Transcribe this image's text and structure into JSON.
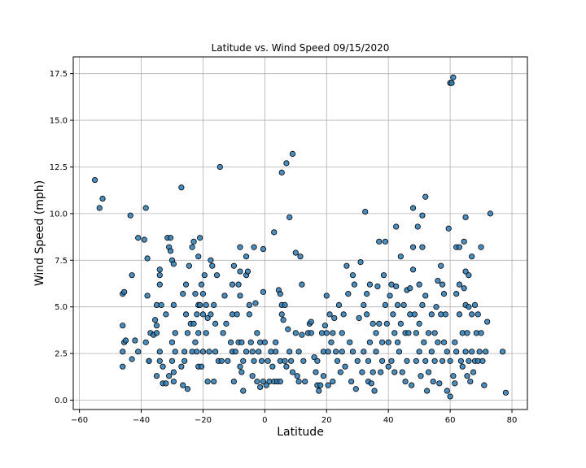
{
  "chart_data": {
    "type": "scatter",
    "title": "Latitude vs. Wind Speed 09/15/2020",
    "xlabel": "Latitude",
    "ylabel": "Wind Speed (mph)",
    "xlim": [
      -62,
      85
    ],
    "ylim": [
      -0.5,
      18.4
    ],
    "xticks": [
      -60,
      -40,
      -20,
      0,
      20,
      40,
      60,
      80
    ],
    "yticks": [
      0.0,
      2.5,
      5.0,
      7.5,
      10.0,
      12.5,
      15.0,
      17.5
    ],
    "xtick_labels": [
      "−60",
      "−40",
      "−20",
      "0",
      "20",
      "40",
      "60",
      "80"
    ],
    "ytick_labels": [
      "0.0",
      "2.5",
      "5.0",
      "7.5",
      "10.0",
      "12.5",
      "15.0",
      "17.5"
    ],
    "grid": true,
    "marker_color": "#2a7ab5",
    "marker_edge_color": "#000000",
    "points": [
      [
        -55,
        11.8
      ],
      [
        -53.5,
        10.3
      ],
      [
        -52.5,
        10.8
      ],
      [
        -46,
        4.0
      ],
      [
        -46,
        5.7
      ],
      [
        -45.5,
        5.8
      ],
      [
        -46,
        2.6
      ],
      [
        -45.5,
        3.1
      ],
      [
        -45,
        3.2
      ],
      [
        -46,
        1.8
      ],
      [
        -43.5,
        9.9
      ],
      [
        -43,
        6.7
      ],
      [
        -42,
        3.2
      ],
      [
        -43,
        2.2
      ],
      [
        -41,
        8.7
      ],
      [
        -41,
        2.6
      ],
      [
        -39,
        8.6
      ],
      [
        -38.5,
        10.3
      ],
      [
        -38,
        5.6
      ],
      [
        -38,
        7.6
      ],
      [
        -38.5,
        3.1
      ],
      [
        -37.5,
        2.1
      ],
      [
        -37,
        3.6
      ],
      [
        -37.5,
        2.1
      ],
      [
        -36,
        3.5
      ],
      [
        -35.5,
        4.3
      ],
      [
        -35,
        5.1
      ],
      [
        -35,
        4.0
      ],
      [
        -35,
        3.6
      ],
      [
        -34,
        6.7
      ],
      [
        -34,
        7.0
      ],
      [
        -34,
        6.2
      ],
      [
        -33.5,
        5.1
      ],
      [
        -34,
        2.6
      ],
      [
        -34,
        2.1
      ],
      [
        -35,
        1.3
      ],
      [
        -33,
        1.8
      ],
      [
        -32,
        4.6
      ],
      [
        -33,
        0.9
      ],
      [
        -32,
        0.9
      ],
      [
        -31.5,
        8.7
      ],
      [
        -31,
        8.2
      ],
      [
        -30.5,
        8.7
      ],
      [
        -30.5,
        8.0
      ],
      [
        -30,
        7.5
      ],
      [
        -29.5,
        7.3
      ],
      [
        -29.5,
        5.1
      ],
      [
        -30,
        3.1
      ],
      [
        -29,
        3.6
      ],
      [
        -29,
        2.6
      ],
      [
        -29.5,
        1.5
      ],
      [
        -29.5,
        1.0
      ],
      [
        -31,
        1.3
      ],
      [
        -30,
        2.1
      ],
      [
        -27,
        11.4
      ],
      [
        -26.5,
        5.7
      ],
      [
        -26,
        2.6
      ],
      [
        -26,
        2.1
      ],
      [
        -27,
        1.8
      ],
      [
        -26.5,
        0.8
      ],
      [
        -25.5,
        6.2
      ],
      [
        -25.5,
        4.6
      ],
      [
        -25,
        3.6
      ],
      [
        -25,
        0.6
      ],
      [
        -24.5,
        7.2
      ],
      [
        -24,
        4.1
      ],
      [
        -23.5,
        8.2
      ],
      [
        -23.5,
        2.6
      ],
      [
        -23,
        8.5
      ],
      [
        -23,
        4.1
      ],
      [
        -22.5,
        5.7
      ],
      [
        -22.5,
        3.1
      ],
      [
        -22,
        4.6
      ],
      [
        -22,
        2.6
      ],
      [
        -21.5,
        7.7
      ],
      [
        -21.5,
        5.1
      ],
      [
        -21.5,
        3.6
      ],
      [
        -21.5,
        1.8
      ],
      [
        -21,
        8.7
      ],
      [
        -21,
        5.1
      ],
      [
        -20.5,
        6.2
      ],
      [
        -20,
        4.6
      ],
      [
        -20,
        2.6
      ],
      [
        -20.5,
        1.8
      ],
      [
        -20,
        5.7
      ],
      [
        -19.5,
        6.7
      ],
      [
        -19,
        5.1
      ],
      [
        -19,
        3.6
      ],
      [
        -18.5,
        4.4
      ],
      [
        -18,
        2.6
      ],
      [
        -18.5,
        1.0
      ],
      [
        -17.5,
        7.5
      ],
      [
        -17.5,
        4.6
      ],
      [
        -17,
        7.2
      ],
      [
        -16.5,
        5.1
      ],
      [
        -16.5,
        1.0
      ],
      [
        -16,
        2.6
      ],
      [
        -16,
        4.1
      ],
      [
        -15.5,
        6.7
      ],
      [
        -15,
        2.1
      ],
      [
        -14.5,
        12.5
      ],
      [
        -14,
        2.1
      ],
      [
        -13,
        5.6
      ],
      [
        -13.5,
        3.6
      ],
      [
        -12.5,
        4.1
      ],
      [
        -12,
        2.1
      ],
      [
        -11,
        3.1
      ],
      [
        -10.5,
        6.2
      ],
      [
        -10,
        7.2
      ],
      [
        -10.5,
        4.6
      ],
      [
        -10.5,
        2.6
      ],
      [
        -10,
        1.0
      ],
      [
        -9.5,
        2.6
      ],
      [
        -9,
        4.6
      ],
      [
        -8.5,
        6.2
      ],
      [
        -8.5,
        3.1
      ],
      [
        -8,
        5.6
      ],
      [
        -8,
        8.2
      ],
      [
        -8,
        6.9
      ],
      [
        -8,
        1.8
      ],
      [
        -7.5,
        3.1
      ],
      [
        -7.5,
        1.5
      ],
      [
        -7,
        2.1
      ],
      [
        -7,
        0.5
      ],
      [
        -6,
        7.7
      ],
      [
        -6,
        6.7
      ],
      [
        -6,
        2.6
      ],
      [
        -5.5,
        6.9
      ],
      [
        -5,
        5.1
      ],
      [
        -5,
        4.6
      ],
      [
        -4.5,
        3.1
      ],
      [
        -4,
        2.6
      ],
      [
        -4,
        1.3
      ],
      [
        -3.5,
        8.2
      ],
      [
        -3.5,
        2.1
      ],
      [
        -3,
        5.2
      ],
      [
        -2.5,
        3.6
      ],
      [
        -2.5,
        1.0
      ],
      [
        -2,
        2.6
      ],
      [
        -1.5,
        3.1
      ],
      [
        -1.5,
        0.7
      ],
      [
        -1,
        2.1
      ],
      [
        -0.5,
        5.8
      ],
      [
        -0.5,
        1.0
      ],
      [
        -0.5,
        8.1
      ],
      [
        0,
        3.1
      ],
      [
        0.5,
        0.8
      ],
      [
        1,
        2.1
      ],
      [
        1.5,
        1.0
      ],
      [
        2,
        2.6
      ],
      [
        2.5,
        1.8
      ],
      [
        3,
        9.0
      ],
      [
        3,
        1.0
      ],
      [
        3.5,
        3.1
      ],
      [
        3.5,
        2.6
      ],
      [
        4,
        1.0
      ],
      [
        4.5,
        5.9
      ],
      [
        5,
        5.7
      ],
      [
        5,
        2.1
      ],
      [
        5,
        1.0
      ],
      [
        5.5,
        12.2
      ],
      [
        5.5,
        5.1
      ],
      [
        5.5,
        4.6
      ],
      [
        6,
        4.3
      ],
      [
        6.5,
        5.1
      ],
      [
        6.5,
        2.1
      ],
      [
        7,
        1.8
      ],
      [
        7,
        12.7
      ],
      [
        7.5,
        3.8
      ],
      [
        8,
        9.8
      ],
      [
        8,
        2.6
      ],
      [
        8.5,
        2.1
      ],
      [
        9,
        13.2
      ],
      [
        9,
        1.5
      ],
      [
        10,
        7.9
      ],
      [
        10,
        3.6
      ],
      [
        10.5,
        1.3
      ],
      [
        11,
        2.6
      ],
      [
        11,
        1.0
      ],
      [
        11.5,
        7.7
      ],
      [
        12,
        6.2
      ],
      [
        12,
        3.5
      ],
      [
        12.5,
        2.1
      ],
      [
        13,
        1.0
      ],
      [
        14,
        3.6
      ],
      [
        14.5,
        4.1
      ],
      [
        15,
        4.2
      ],
      [
        15,
        3.6
      ],
      [
        16,
        2.3
      ],
      [
        16.5,
        1.5
      ],
      [
        17,
        2.1
      ],
      [
        17,
        0.8
      ],
      [
        17.5,
        0.5
      ],
      [
        18,
        0.8
      ],
      [
        18.5,
        3.6
      ],
      [
        19,
        2.6
      ],
      [
        19,
        1.3
      ],
      [
        19.5,
        4.0
      ],
      [
        20,
        5.6
      ],
      [
        20,
        3.6
      ],
      [
        20.5,
        0.8
      ],
      [
        20.5,
        2.6
      ],
      [
        21,
        4.6
      ],
      [
        21.5,
        3.1
      ],
      [
        22,
        3.6
      ],
      [
        22,
        1.0
      ],
      [
        22.5,
        4.4
      ],
      [
        23,
        2.6
      ],
      [
        23.5,
        2.1
      ],
      [
        24,
        5.1
      ],
      [
        24.5,
        1.5
      ],
      [
        25,
        3.6
      ],
      [
        25,
        2.6
      ],
      [
        25.5,
        4.6
      ],
      [
        26,
        1.8
      ],
      [
        26.5,
        7.2
      ],
      [
        27,
        5.7
      ],
      [
        27.5,
        3.1
      ],
      [
        28,
        1.0
      ],
      [
        28.5,
        6.7
      ],
      [
        28.5,
        2.6
      ],
      [
        29,
        6.2
      ],
      [
        29.5,
        0.6
      ],
      [
        30,
        2.1
      ],
      [
        30.5,
        4.4
      ],
      [
        31,
        7.4
      ],
      [
        31.5,
        1.5
      ],
      [
        32,
        5.1
      ],
      [
        32,
        2.6
      ],
      [
        32.5,
        10.1
      ],
      [
        33,
        5.7
      ],
      [
        33,
        4.6
      ],
      [
        33.5,
        2.1
      ],
      [
        33.5,
        1.0
      ],
      [
        34,
        6.2
      ],
      [
        34,
        3.1
      ],
      [
        34.5,
        0.9
      ],
      [
        35,
        1.5
      ],
      [
        35,
        4.1
      ],
      [
        35.5,
        0.5
      ],
      [
        36,
        3.6
      ],
      [
        36,
        2.6
      ],
      [
        36.5,
        6.1
      ],
      [
        37,
        8.5
      ],
      [
        37,
        4.1
      ],
      [
        37.5,
        1.5
      ],
      [
        38,
        3.1
      ],
      [
        38,
        2.1
      ],
      [
        38.5,
        6.7
      ],
      [
        39,
        8.5
      ],
      [
        39,
        5.1
      ],
      [
        39.5,
        4.1
      ],
      [
        40,
        3.1
      ],
      [
        40,
        1.8
      ],
      [
        40.5,
        5.6
      ],
      [
        41,
        6.2
      ],
      [
        41,
        2.1
      ],
      [
        41.5,
        4.6
      ],
      [
        42,
        3.6
      ],
      [
        42,
        1.5
      ],
      [
        42.5,
        9.3
      ],
      [
        42.5,
        6.1
      ],
      [
        43,
        5.1
      ],
      [
        43,
        3.1
      ],
      [
        43.5,
        2.6
      ],
      [
        44,
        7.7
      ],
      [
        44,
        4.1
      ],
      [
        44.5,
        1.5
      ],
      [
        45,
        5.1
      ],
      [
        45.5,
        3.6
      ],
      [
        45.5,
        1.0
      ],
      [
        46,
        5.9
      ],
      [
        46,
        2.1
      ],
      [
        46.5,
        3.6
      ],
      [
        47,
        6.0
      ],
      [
        47,
        4.6
      ],
      [
        47.5,
        0.8
      ],
      [
        48,
        10.3
      ],
      [
        48,
        8.2
      ],
      [
        48,
        7.0
      ],
      [
        48.5,
        4.6
      ],
      [
        49,
        3.6
      ],
      [
        49,
        2.1
      ],
      [
        49.5,
        9.3
      ],
      [
        50,
        6.2
      ],
      [
        50,
        4.1
      ],
      [
        50,
        2.6
      ],
      [
        50.5,
        1.3
      ],
      [
        51,
        9.9
      ],
      [
        51,
        8.2
      ],
      [
        51,
        5.1
      ],
      [
        51.5,
        3.1
      ],
      [
        52,
        10.9
      ],
      [
        52,
        5.6
      ],
      [
        52,
        2.1
      ],
      [
        52.5,
        0.5
      ],
      [
        53,
        3.6
      ],
      [
        53,
        1.5
      ],
      [
        54,
        4.6
      ],
      [
        54,
        2.6
      ],
      [
        54.5,
        1.0
      ],
      [
        55,
        3.6
      ],
      [
        55,
        2.1
      ],
      [
        55.5,
        5.0
      ],
      [
        56,
        6.4
      ],
      [
        56,
        3.1
      ],
      [
        56.5,
        0.9
      ],
      [
        57,
        7.2
      ],
      [
        57,
        4.6
      ],
      [
        57.5,
        2.1
      ],
      [
        57.5,
        6.2
      ],
      [
        58,
        5.7
      ],
      [
        58,
        3.1
      ],
      [
        58.5,
        4.6
      ],
      [
        59,
        2.6
      ],
      [
        59,
        0.5
      ],
      [
        59.5,
        9.2
      ],
      [
        60,
        17.0
      ],
      [
        60,
        2.1
      ],
      [
        60,
        0.2
      ],
      [
        60.5,
        17.0
      ],
      [
        61,
        17.3
      ],
      [
        61,
        1.3
      ],
      [
        61.5,
        3.1
      ],
      [
        61.5,
        0.9
      ],
      [
        62,
        8.2
      ],
      [
        62,
        5.7
      ],
      [
        62,
        2.6
      ],
      [
        63,
        8.2
      ],
      [
        63,
        6.2
      ],
      [
        63,
        4.6
      ],
      [
        63.5,
        2.1
      ],
      [
        64,
        3.6
      ],
      [
        64,
        1.8
      ],
      [
        64.5,
        8.5
      ],
      [
        64.5,
        6.0
      ],
      [
        65,
        9.8
      ],
      [
        65,
        6.9
      ],
      [
        65,
        5.1
      ],
      [
        65,
        2.6
      ],
      [
        65.5,
        3.6
      ],
      [
        65.5,
        1.3
      ],
      [
        66,
        6.7
      ],
      [
        66,
        5.0
      ],
      [
        66,
        2.1
      ],
      [
        66.5,
        1.0
      ],
      [
        67,
        7.7
      ],
      [
        67,
        4.6
      ],
      [
        67,
        2.6
      ],
      [
        67.5,
        1.5
      ],
      [
        68,
        5.1
      ],
      [
        68,
        2.1
      ],
      [
        68.5,
        3.6
      ],
      [
        69,
        4.6
      ],
      [
        69,
        2.1
      ],
      [
        69.5,
        2.6
      ],
      [
        70,
        3.6
      ],
      [
        70,
        8.2
      ],
      [
        70.5,
        2.1
      ],
      [
        71,
        0.8
      ],
      [
        71.5,
        2.6
      ],
      [
        72,
        4.2
      ],
      [
        73,
        10.0
      ],
      [
        77,
        2.6
      ],
      [
        78,
        0.4
      ]
    ]
  }
}
